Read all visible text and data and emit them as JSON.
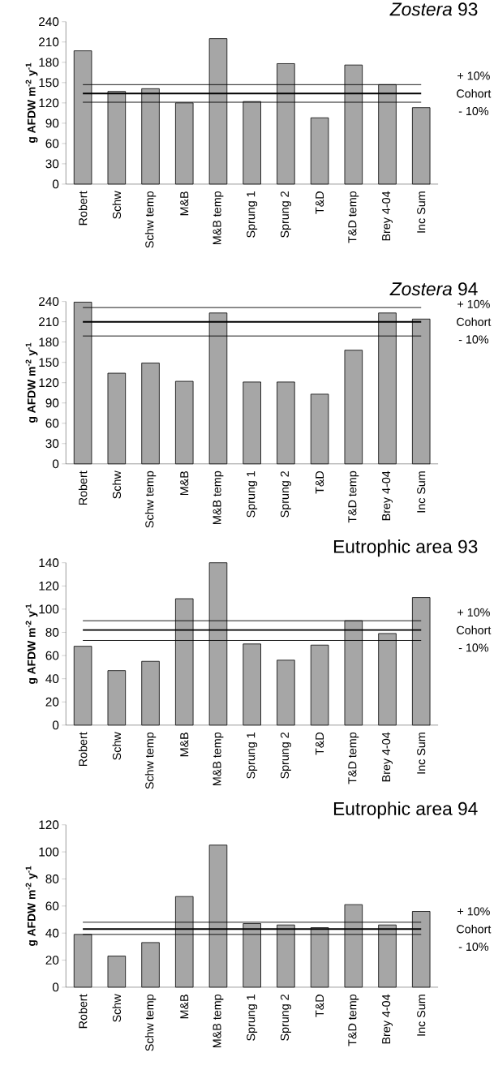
{
  "chart_data": [
    {
      "type": "bar",
      "title": "*Zostera* 93",
      "ylabel": "g AFDW m$^{-2}$ y$^{-1}$",
      "color": "#a6a6a6",
      "categories": [
        "Robert",
        "Schw",
        "Schw temp",
        "M&B",
        "M&B temp",
        "Sprung 1",
        "Sprung 2",
        "T&D",
        "T&D temp",
        "Brey 4-04",
        "Inc Sum"
      ],
      "values": [
        197,
        137,
        141,
        120,
        215,
        122,
        178,
        98,
        176,
        147,
        113
      ],
      "ylim": [
        0,
        240
      ],
      "yticks": [
        0,
        30,
        60,
        90,
        120,
        150,
        180,
        210,
        240
      ],
      "ref_lines": [
        {
          "axis": "y",
          "value": 147,
          "color": "#000000"
        },
        {
          "axis": "y",
          "value": 134,
          "label": "Cohort",
          "color": "#000000"
        },
        {
          "axis": "y",
          "value": 121,
          "color": "#000000"
        }
      ],
      "annotations": [
        "+ 10%",
        "- 10%"
      ]
    },
    {
      "type": "bar",
      "title": "*Zostera* 94",
      "ylabel": "g AFDW m$^{-2}$ y$^{-1}$",
      "color": "#a6a6a6",
      "categories": [
        "Robert",
        "Schw",
        "Schw temp",
        "M&B",
        "M&B temp",
        "Sprung 1",
        "Sprung 2",
        "T&D",
        "T&D temp",
        "Brey 4-04",
        "Inc Sum"
      ],
      "values": [
        239,
        134,
        149,
        122,
        223,
        121,
        121,
        103,
        168,
        223,
        214
      ],
      "ylim": [
        0,
        240
      ],
      "yticks": [
        0,
        30,
        60,
        90,
        120,
        150,
        180,
        210,
        240
      ],
      "ref_lines": [
        {
          "axis": "y",
          "value": 231,
          "color": "#000000"
        },
        {
          "axis": "y",
          "value": 210,
          "label": "Cohort",
          "color": "#000000"
        },
        {
          "axis": "y",
          "value": 189,
          "color": "#000000"
        }
      ],
      "annotations": [
        "+ 10%",
        "- 10%"
      ]
    },
    {
      "type": "bar",
      "title": "Eutrophic area 93",
      "ylabel": "g AFDW m$^{-2}$ y$^{-1}$",
      "color": "#a6a6a6",
      "categories": [
        "Robert",
        "Schw",
        "Schw temp",
        "M&B",
        "M&B temp",
        "Sprung 1",
        "Sprung 2",
        "T&D",
        "T&D temp",
        "Brey 4-04",
        "Inc Sum"
      ],
      "values": [
        68,
        47,
        55,
        109,
        140,
        70,
        56,
        69,
        90,
        79,
        110
      ],
      "ylim": [
        0,
        140
      ],
      "yticks": [
        0,
        20,
        40,
        60,
        80,
        100,
        120,
        140
      ],
      "ref_lines": [
        {
          "axis": "y",
          "value": 90,
          "color": "#000000"
        },
        {
          "axis": "y",
          "value": 82,
          "label": "Cohort",
          "color": "#000000"
        },
        {
          "axis": "y",
          "value": 73,
          "color": "#000000"
        }
      ],
      "annotations": [
        "+ 10%",
        "- 10%"
      ]
    },
    {
      "type": "bar",
      "title": "Eutrophic area 94",
      "ylabel": "g AFDW m$^{-2}$ y$^{-1}$",
      "color": "#a6a6a6",
      "categories": [
        "Robert",
        "Schw",
        "Schw temp",
        "M&B",
        "M&B temp",
        "Sprung 1",
        "Sprung 2",
        "T&D",
        "T&D temp",
        "Brey 4-04",
        "Inc Sum"
      ],
      "values": [
        39,
        23,
        33,
        67,
        105,
        47,
        46,
        44,
        61,
        46,
        56
      ],
      "ylim": [
        0,
        120
      ],
      "yticks": [
        0,
        20,
        40,
        60,
        80,
        100,
        120
      ],
      "ref_lines": [
        {
          "axis": "y",
          "value": 48,
          "color": "#000000"
        },
        {
          "axis": "y",
          "value": 43,
          "label": "Cohort",
          "color": "#000000"
        },
        {
          "axis": "y",
          "value": 39,
          "color": "#000000"
        }
      ],
      "annotations": [
        "+ 10%",
        "- 10%"
      ]
    }
  ]
}
